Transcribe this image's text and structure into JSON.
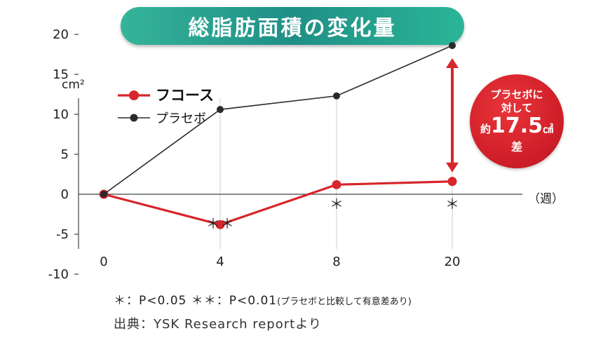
{
  "title": "総脂肪面積の変化量",
  "chart_data": {
    "type": "line",
    "y_unit": "cm²",
    "x_unit": "（週）",
    "categories": [
      0,
      4,
      8,
      20
    ],
    "y_ticks": [
      20,
      15,
      10,
      5,
      0,
      -5,
      -10
    ],
    "ylim": [
      -10,
      20
    ],
    "series": [
      {
        "name": "フコース",
        "color": "#d7262c",
        "values": [
          0,
          -3.8,
          1.2,
          1.6
        ]
      },
      {
        "name": "プラセボ",
        "color": "#2a2a2a",
        "values": [
          0,
          10.6,
          12.3,
          18.6
        ]
      }
    ],
    "significance": [
      {
        "x": 4,
        "label": "＊＊"
      },
      {
        "x": 8,
        "label": "＊"
      },
      {
        "x": 20,
        "label": "＊"
      }
    ],
    "grid": true,
    "legend_position": "top-left"
  },
  "badge": {
    "line1": "プラセボに",
    "line2": "対して",
    "prefix": "約",
    "value": "17.5",
    "unit": "㎠",
    "suffix": "差"
  },
  "footnote": {
    "significance": "＊：P<0.05  ＊＊：P<0.01",
    "significance_note": "(プラセボと比較して有意差あり)",
    "source": "出典：YSK Research reportより"
  }
}
